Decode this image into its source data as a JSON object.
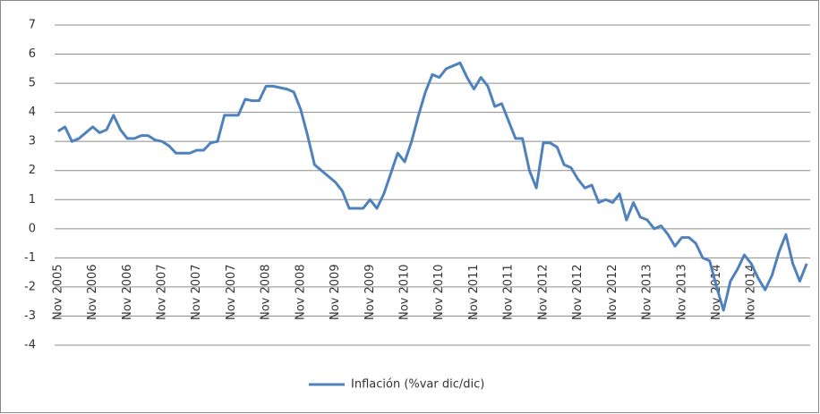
{
  "chart_data": {
    "type": "line",
    "categories": [
      "Nov 2005",
      null,
      null,
      null,
      null,
      "Nov 2006",
      null,
      null,
      null,
      null,
      "Nov 2006",
      null,
      null,
      null,
      null,
      "Nov 2007",
      null,
      null,
      null,
      null,
      "Nov 2007",
      null,
      null,
      null,
      null,
      "Nov 2007",
      null,
      null,
      null,
      null,
      "Nov 2008",
      null,
      null,
      null,
      null,
      "Nov 2008",
      null,
      null,
      null,
      null,
      "Nov 2009",
      null,
      null,
      null,
      null,
      "Nov 2009",
      null,
      null,
      null,
      null,
      "Nov 2010",
      null,
      null,
      null,
      null,
      "Nov 2010",
      null,
      null,
      null,
      null,
      "Nov 2011",
      null,
      null,
      null,
      null,
      "Nov 2011",
      null,
      null,
      null,
      null,
      "Nov 2012",
      null,
      null,
      null,
      null,
      "Nov 2012",
      null,
      null,
      null,
      null,
      "Nov 2012",
      null,
      null,
      null,
      null,
      "Nov 2013",
      null,
      null,
      null,
      null,
      "Nov 2013",
      null,
      null,
      null,
      null,
      "Nov 2014",
      null,
      null,
      null,
      null,
      "Nov 2014",
      null,
      null,
      null,
      null,
      null,
      null,
      null,
      null
    ],
    "series": [
      {
        "name": "Inflación (%var dic/dic)",
        "color": "#4f81bd",
        "values": [
          3.35,
          3.5,
          3.0,
          3.1,
          3.3,
          3.5,
          3.3,
          3.4,
          3.9,
          3.4,
          3.1,
          3.1,
          3.2,
          3.2,
          3.05,
          3.0,
          2.85,
          2.6,
          2.6,
          2.6,
          2.7,
          2.7,
          2.95,
          3.0,
          3.9,
          3.9,
          3.9,
          4.45,
          4.4,
          4.4,
          4.9,
          4.9,
          4.85,
          4.8,
          4.7,
          4.1,
          3.2,
          2.2,
          2.0,
          1.8,
          1.6,
          1.3,
          0.7,
          0.7,
          0.7,
          1.0,
          0.7,
          1.2,
          1.9,
          2.6,
          2.3,
          3.0,
          3.9,
          4.7,
          5.3,
          5.2,
          5.5,
          5.6,
          5.7,
          5.2,
          4.8,
          5.2,
          4.9,
          4.2,
          4.3,
          3.7,
          3.1,
          3.1,
          2.0,
          1.4,
          2.95,
          2.95,
          2.8,
          2.2,
          2.1,
          1.7,
          1.4,
          1.5,
          0.9,
          1.0,
          0.9,
          1.2,
          0.3,
          0.9,
          0.4,
          0.3,
          0.0,
          0.1,
          -0.2,
          -0.6,
          -0.3,
          -0.3,
          -0.5,
          -1.0,
          -1.1,
          -2.0,
          -2.8,
          -1.8,
          -1.4,
          -0.9,
          -1.2,
          -1.7,
          -2.1,
          -1.6,
          -0.8,
          -0.2,
          -1.2,
          -1.8,
          -1.2
        ]
      }
    ],
    "ylim": [
      -4,
      7
    ],
    "yticks": [
      -4,
      -3,
      -2,
      -1,
      0,
      1,
      2,
      3,
      4,
      5,
      6,
      7
    ],
    "grid": true,
    "legend": "bottom"
  }
}
